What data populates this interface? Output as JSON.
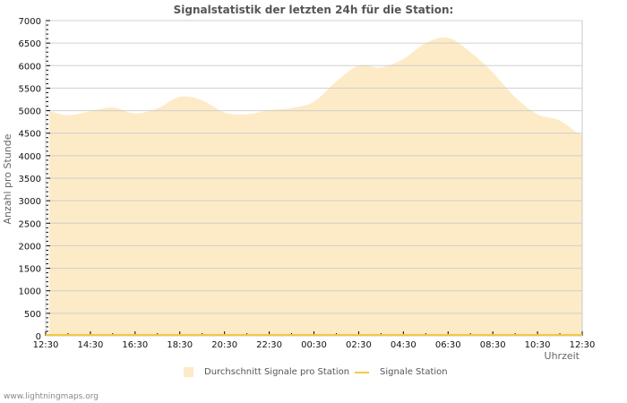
{
  "title": "Signalstatistik der letzten 24h für die Station:",
  "footer": "www.lightningmaps.org",
  "colors": {
    "fill": "#fdebc8",
    "line": "#f5c842",
    "grid": "#c8c8c8",
    "grid_in_fill": "#d8c8a0"
  },
  "legend": [
    {
      "label": "Durchschnitt Signale pro Station",
      "type": "area"
    },
    {
      "label": "Signale Station",
      "type": "line"
    }
  ],
  "chart_data": {
    "type": "area",
    "title": "Signalstatistik der letzten 24h für die Station:",
    "xlabel": "Uhrzeit",
    "ylabel": "Anzahl pro Stunde",
    "ylim": [
      0,
      7000
    ],
    "yticks": [
      0,
      500,
      1000,
      1500,
      2000,
      2500,
      3000,
      3500,
      4000,
      4500,
      5000,
      5500,
      6000,
      6500,
      7000
    ],
    "xtick_labels": [
      "12:30",
      "14:30",
      "16:30",
      "18:30",
      "20:30",
      "22:30",
      "00:30",
      "02:30",
      "04:30",
      "06:30",
      "08:30",
      "10:30",
      "12:30"
    ],
    "grid": true,
    "legend_position": "bottom",
    "x": [
      "12:30",
      "13:30",
      "14:30",
      "15:30",
      "16:30",
      "17:30",
      "18:30",
      "19:30",
      "20:30",
      "21:30",
      "22:30",
      "23:30",
      "00:30",
      "01:30",
      "02:30",
      "03:30",
      "04:30",
      "05:30",
      "06:30",
      "07:30",
      "08:30",
      "09:30",
      "10:30",
      "11:30",
      "12:30"
    ],
    "series": [
      {
        "name": "Durchschnitt Signale pro Station",
        "type": "area",
        "values": [
          5000,
          4900,
          4990,
          5070,
          4940,
          5050,
          5310,
          5230,
          4960,
          4920,
          5010,
          5060,
          5200,
          5650,
          6000,
          5960,
          6150,
          6500,
          6620,
          6300,
          5850,
          5300,
          4920,
          4780,
          4460
        ]
      },
      {
        "name": "Signale Station",
        "type": "line",
        "values": [
          0,
          0,
          0,
          0,
          0,
          0,
          0,
          0,
          0,
          0,
          0,
          0,
          0,
          0,
          0,
          0,
          0,
          0,
          0,
          0,
          0,
          0,
          0,
          0,
          0
        ]
      }
    ]
  }
}
